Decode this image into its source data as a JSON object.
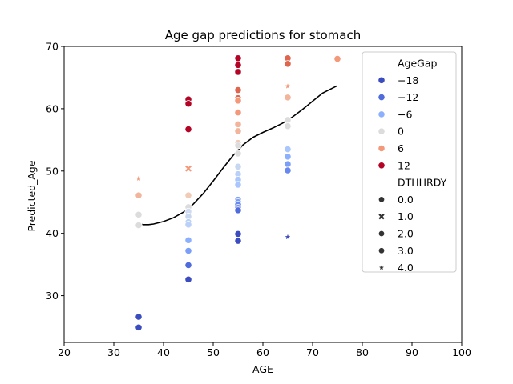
{
  "chart_data": {
    "type": "scatter",
    "title": "Age gap predictions for stomach",
    "xlabel": "AGE",
    "ylabel": "Predicted_Age",
    "xlim": [
      20,
      100
    ],
    "ylim": [
      22.5,
      70
    ],
    "xticks": [
      "20",
      "30",
      "40",
      "50",
      "60",
      "70",
      "80",
      "90",
      "100"
    ],
    "yticks": [
      "30",
      "40",
      "50",
      "60",
      "70"
    ],
    "grid": false,
    "legend_position": "top-right",
    "hue_title": "AgeGap",
    "hue_entries": [
      {
        "label": "−18",
        "color": "#3b4cc0"
      },
      {
        "label": "−12",
        "color": "#4f6bdc"
      },
      {
        "label": "−6",
        "color": "#8db0fe"
      },
      {
        "label": "0",
        "color": "#dddcdc"
      },
      {
        "label": "6",
        "color": "#f4987a"
      },
      {
        "label": "12",
        "color": "#b40426"
      }
    ],
    "style_title": "DTHHRDY",
    "style_entries": [
      {
        "label": "0.0",
        "marker": "circle"
      },
      {
        "label": "1.0",
        "marker": "x"
      },
      {
        "label": "2.0",
        "marker": "circle"
      },
      {
        "label": "3.0",
        "marker": "circle"
      },
      {
        "label": "4.0",
        "marker": "star"
      }
    ],
    "points": [
      {
        "x": 35,
        "y": 48.8,
        "color": "#f4987a",
        "marker": "star"
      },
      {
        "x": 35,
        "y": 46.1,
        "color": "#f2b59c",
        "marker": "circle"
      },
      {
        "x": 35,
        "y": 43.0,
        "color": "#dddcdc",
        "marker": "circle"
      },
      {
        "x": 35,
        "y": 41.3,
        "color": "#dddcdc",
        "marker": "circle"
      },
      {
        "x": 35,
        "y": 26.6,
        "color": "#3b4cc0",
        "marker": "circle"
      },
      {
        "x": 35,
        "y": 24.9,
        "color": "#3b4cc0",
        "marker": "circle"
      },
      {
        "x": 45,
        "y": 61.5,
        "color": "#b40426",
        "marker": "circle"
      },
      {
        "x": 45,
        "y": 60.8,
        "color": "#b40426",
        "marker": "circle"
      },
      {
        "x": 45,
        "y": 56.7,
        "color": "#b40426",
        "marker": "circle"
      },
      {
        "x": 45,
        "y": 50.4,
        "color": "#f4987a",
        "marker": "x"
      },
      {
        "x": 45,
        "y": 46.1,
        "color": "#f2cbb7",
        "marker": "circle"
      },
      {
        "x": 45,
        "y": 44.2,
        "color": "#dddcdc",
        "marker": "circle"
      },
      {
        "x": 45,
        "y": 43.5,
        "color": "#d0dbf2",
        "marker": "circle"
      },
      {
        "x": 45,
        "y": 42.7,
        "color": "#c7d7f0",
        "marker": "circle"
      },
      {
        "x": 45,
        "y": 41.8,
        "color": "#b9d0f9",
        "marker": "circle"
      },
      {
        "x": 45,
        "y": 41.4,
        "color": "#b9d0f9",
        "marker": "circle"
      },
      {
        "x": 45,
        "y": 38.9,
        "color": "#8db0fe",
        "marker": "circle"
      },
      {
        "x": 45,
        "y": 37.2,
        "color": "#7b9ff9",
        "marker": "circle"
      },
      {
        "x": 45,
        "y": 34.9,
        "color": "#4f6bdc",
        "marker": "circle"
      },
      {
        "x": 45,
        "y": 32.6,
        "color": "#3b4cc0",
        "marker": "circle"
      },
      {
        "x": 55,
        "y": 68.1,
        "color": "#b40426",
        "marker": "circle"
      },
      {
        "x": 55,
        "y": 67.0,
        "color": "#b40426",
        "marker": "circle"
      },
      {
        "x": 55,
        "y": 65.9,
        "color": "#b40426",
        "marker": "circle"
      },
      {
        "x": 55,
        "y": 63.0,
        "color": "#e0654f",
        "marker": "circle"
      },
      {
        "x": 55,
        "y": 61.7,
        "color": "#e0654f",
        "marker": "circle"
      },
      {
        "x": 55,
        "y": 61.3,
        "color": "#f4987a",
        "marker": "circle"
      },
      {
        "x": 55,
        "y": 59.4,
        "color": "#f4987a",
        "marker": "circle"
      },
      {
        "x": 55,
        "y": 57.5,
        "color": "#f2b59c",
        "marker": "circle"
      },
      {
        "x": 55,
        "y": 56.4,
        "color": "#f2b59c",
        "marker": "circle"
      },
      {
        "x": 55,
        "y": 54.5,
        "color": "#f2cbb7",
        "marker": "circle"
      },
      {
        "x": 55,
        "y": 54.1,
        "color": "#dddcdc",
        "marker": "circle"
      },
      {
        "x": 55,
        "y": 52.8,
        "color": "#dddcdc",
        "marker": "circle"
      },
      {
        "x": 55,
        "y": 50.7,
        "color": "#c7d7f0",
        "marker": "circle"
      },
      {
        "x": 55,
        "y": 49.5,
        "color": "#b9d0f9",
        "marker": "circle"
      },
      {
        "x": 55,
        "y": 48.6,
        "color": "#aac7fd",
        "marker": "circle"
      },
      {
        "x": 55,
        "y": 47.8,
        "color": "#aac7fd",
        "marker": "circle"
      },
      {
        "x": 55,
        "y": 45.4,
        "color": "#7b9ff9",
        "marker": "circle"
      },
      {
        "x": 55,
        "y": 45.0,
        "color": "#7b9ff9",
        "marker": "circle"
      },
      {
        "x": 55,
        "y": 44.6,
        "color": "#6788ee",
        "marker": "circle"
      },
      {
        "x": 55,
        "y": 44.1,
        "color": "#6788ee",
        "marker": "circle"
      },
      {
        "x": 55,
        "y": 43.7,
        "color": "#4f6bdc",
        "marker": "circle"
      },
      {
        "x": 55,
        "y": 39.9,
        "color": "#3b4cc0",
        "marker": "circle"
      },
      {
        "x": 55,
        "y": 38.8,
        "color": "#3b4cc0",
        "marker": "circle"
      },
      {
        "x": 65,
        "y": 68.1,
        "color": "#e0654f",
        "marker": "circle"
      },
      {
        "x": 65,
        "y": 67.2,
        "color": "#e0654f",
        "marker": "circle"
      },
      {
        "x": 65,
        "y": 63.6,
        "color": "#f4987a",
        "marker": "star"
      },
      {
        "x": 65,
        "y": 61.8,
        "color": "#f2b59c",
        "marker": "circle"
      },
      {
        "x": 65,
        "y": 58.2,
        "color": "#dddcdc",
        "marker": "circle"
      },
      {
        "x": 65,
        "y": 57.2,
        "color": "#dddcdc",
        "marker": "circle"
      },
      {
        "x": 65,
        "y": 53.5,
        "color": "#aac7fd",
        "marker": "circle"
      },
      {
        "x": 65,
        "y": 52.3,
        "color": "#8db0fe",
        "marker": "circle"
      },
      {
        "x": 65,
        "y": 51.1,
        "color": "#7b9ff9",
        "marker": "circle"
      },
      {
        "x": 65,
        "y": 50.1,
        "color": "#6788ee",
        "marker": "circle"
      },
      {
        "x": 65,
        "y": 39.4,
        "color": "#3b4cc0",
        "marker": "star"
      },
      {
        "x": 75,
        "y": 68.0,
        "color": "#f4987a",
        "marker": "circle"
      }
    ],
    "trend_line": {
      "color": "#000000",
      "x": [
        35,
        36,
        37,
        38,
        40,
        42,
        44,
        46,
        48,
        50,
        52,
        54,
        56,
        58,
        60,
        62,
        64,
        66,
        68,
        70,
        72,
        75
      ],
      "y": [
        41.5,
        41.4,
        41.4,
        41.5,
        41.9,
        42.5,
        43.4,
        44.7,
        46.4,
        48.4,
        50.5,
        52.5,
        54.2,
        55.4,
        56.2,
        56.9,
        57.7,
        58.7,
        59.9,
        61.2,
        62.5,
        63.7
      ]
    }
  }
}
